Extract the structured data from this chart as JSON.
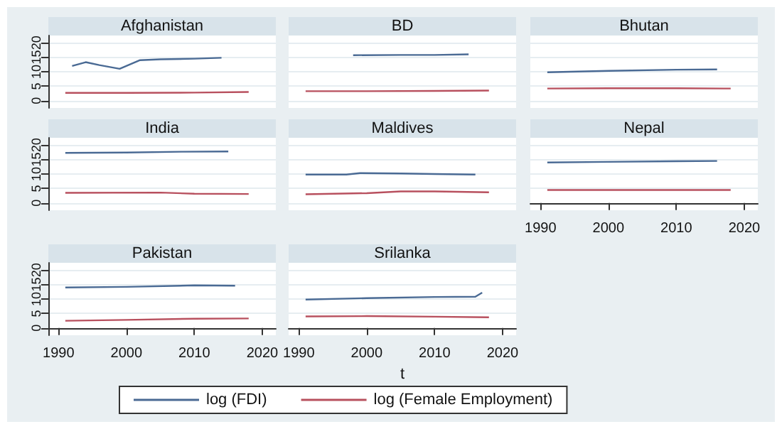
{
  "chart_data": [
    {
      "type": "line",
      "title": "Afghanistan",
      "xlim": [
        1988.5,
        2022
      ],
      "xticks": [
        1990,
        2000,
        2010,
        2020
      ],
      "ylim": [
        -2.5,
        22.5
      ],
      "yticks": [
        0,
        5,
        10,
        15,
        20
      ],
      "grid": "y",
      "marker": "none",
      "tick_labels": "y",
      "series": [
        {
          "color": "#4a6a94",
          "x": [
            1992,
            1994,
            1996,
            1999,
            2002,
            2005,
            2010,
            2014
          ],
          "values": [
            12,
            13.3,
            12.3,
            11,
            14,
            14.3,
            14.5,
            14.8
          ]
        },
        {
          "color": "#b8505e",
          "x": [
            1991,
            2000,
            2010,
            2018
          ],
          "values": [
            2.7,
            2.7,
            2.8,
            3
          ]
        }
      ]
    },
    {
      "type": "line",
      "title": "BD",
      "xlim": [
        1988.5,
        2022
      ],
      "xticks": [
        1990,
        2000,
        2010,
        2020
      ],
      "ylim": [
        -2.5,
        22.5
      ],
      "yticks": [
        0,
        5,
        10,
        15,
        20
      ],
      "grid": "y",
      "marker": "none",
      "tick_labels": false,
      "series": [
        {
          "color": "#4a6a94",
          "x": [
            1998,
            2005,
            2010,
            2015
          ],
          "values": [
            15.7,
            15.8,
            15.8,
            16
          ]
        },
        {
          "color": "#b8505e",
          "x": [
            1991,
            2000,
            2010,
            2018
          ],
          "values": [
            3.3,
            3.3,
            3.4,
            3.5
          ]
        }
      ]
    },
    {
      "type": "line",
      "title": "Bhutan",
      "xlim": [
        1988.5,
        2022
      ],
      "xticks": [
        1990,
        2000,
        2010,
        2020
      ],
      "ylim": [
        -2.5,
        22.5
      ],
      "yticks": [
        0,
        5,
        10,
        15,
        20
      ],
      "grid": "y",
      "marker": "none",
      "tick_labels": false,
      "series": [
        {
          "color": "#4a6a94",
          "x": [
            1991,
            2000,
            2010,
            2016
          ],
          "values": [
            9.8,
            10.3,
            10.7,
            10.8
          ]
        },
        {
          "color": "#b8505e",
          "x": [
            1991,
            2000,
            2010,
            2018
          ],
          "values": [
            4.2,
            4.3,
            4.3,
            4.2
          ]
        }
      ]
    },
    {
      "type": "line",
      "title": "India",
      "xlim": [
        1988.5,
        2022
      ],
      "xticks": [
        1990,
        2000,
        2010,
        2020
      ],
      "ylim": [
        -2.5,
        22.5
      ],
      "yticks": [
        0,
        5,
        10,
        15,
        20
      ],
      "grid": "y",
      "marker": "none",
      "tick_labels": "y",
      "series": [
        {
          "color": "#4a6a94",
          "x": [
            1991,
            2000,
            2008,
            2015
          ],
          "values": [
            17.3,
            17.4,
            17.7,
            17.8
          ]
        },
        {
          "color": "#b8505e",
          "x": [
            1991,
            2005,
            2010,
            2018
          ],
          "values": [
            3.5,
            3.6,
            3.2,
            3.1
          ]
        }
      ]
    },
    {
      "type": "line",
      "title": "Maldives",
      "xlim": [
        1988.5,
        2022
      ],
      "xticks": [
        1990,
        2000,
        2010,
        2020
      ],
      "ylim": [
        -2.5,
        22.5
      ],
      "yticks": [
        0,
        5,
        10,
        15,
        20
      ],
      "grid": "y",
      "marker": "none",
      "tick_labels": false,
      "series": [
        {
          "color": "#4a6a94",
          "x": [
            1991,
            1997,
            1999,
            2005,
            2010,
            2016
          ],
          "values": [
            9.8,
            9.8,
            10.3,
            10.2,
            10,
            9.8
          ]
        },
        {
          "color": "#b8505e",
          "x": [
            1991,
            2000,
            2005,
            2010,
            2018
          ],
          "values": [
            3,
            3.4,
            4,
            4,
            3.7
          ]
        }
      ]
    },
    {
      "type": "line",
      "title": "Nepal",
      "xlim": [
        1988.5,
        2022
      ],
      "xticks": [
        1990,
        2000,
        2010,
        2020
      ],
      "ylim": [
        -2.5,
        22.5
      ],
      "yticks": [
        0,
        5,
        10,
        15,
        20
      ],
      "grid": "y",
      "marker": "none",
      "tick_labels": "x",
      "series": [
        {
          "color": "#4a6a94",
          "x": [
            1991,
            2000,
            2010,
            2016
          ],
          "values": [
            14,
            14.2,
            14.4,
            14.5
          ]
        },
        {
          "color": "#b8505e",
          "x": [
            1991,
            2000,
            2010,
            2018
          ],
          "values": [
            4.5,
            4.5,
            4.5,
            4.5
          ]
        }
      ]
    },
    {
      "type": "line",
      "title": "Pakistan",
      "xlim": [
        1988.5,
        2022
      ],
      "xticks": [
        1990,
        2000,
        2010,
        2020
      ],
      "ylim": [
        -2.5,
        22.5
      ],
      "yticks": [
        0,
        5,
        10,
        15,
        20
      ],
      "grid": "y",
      "marker": "none",
      "series": [
        {
          "color": "#4a6a94",
          "x": [
            1991,
            2000,
            2010,
            2016
          ],
          "values": [
            14,
            14.2,
            14.7,
            14.6
          ]
        },
        {
          "color": "#b8505e",
          "x": [
            1991,
            2000,
            2010,
            2018
          ],
          "values": [
            2.5,
            2.8,
            3.2,
            3.3
          ]
        }
      ]
    },
    {
      "type": "line",
      "title": "Srilanka",
      "xlabel": "t",
      "legend": "bottom",
      "xlim": [
        1988.5,
        2022
      ],
      "xticks": [
        1990,
        2000,
        2010,
        2020
      ],
      "ylim": [
        -2.5,
        22.5
      ],
      "yticks": [
        0,
        5,
        10,
        15,
        20
      ],
      "grid": "y",
      "marker": "none",
      "tick_labels": "x",
      "series": [
        {
          "name": "log (FDI)",
          "color": "#4a6a94",
          "x": [
            1991,
            2000,
            2010,
            2016,
            2017
          ],
          "values": [
            9.8,
            10.3,
            10.7,
            10.8,
            12.2
          ]
        },
        {
          "name": "log (Female Employment)",
          "color": "#b8505e",
          "x": [
            1991,
            2000,
            2010,
            2018
          ],
          "values": [
            4,
            4.1,
            3.9,
            3.7
          ]
        }
      ]
    }
  ]
}
